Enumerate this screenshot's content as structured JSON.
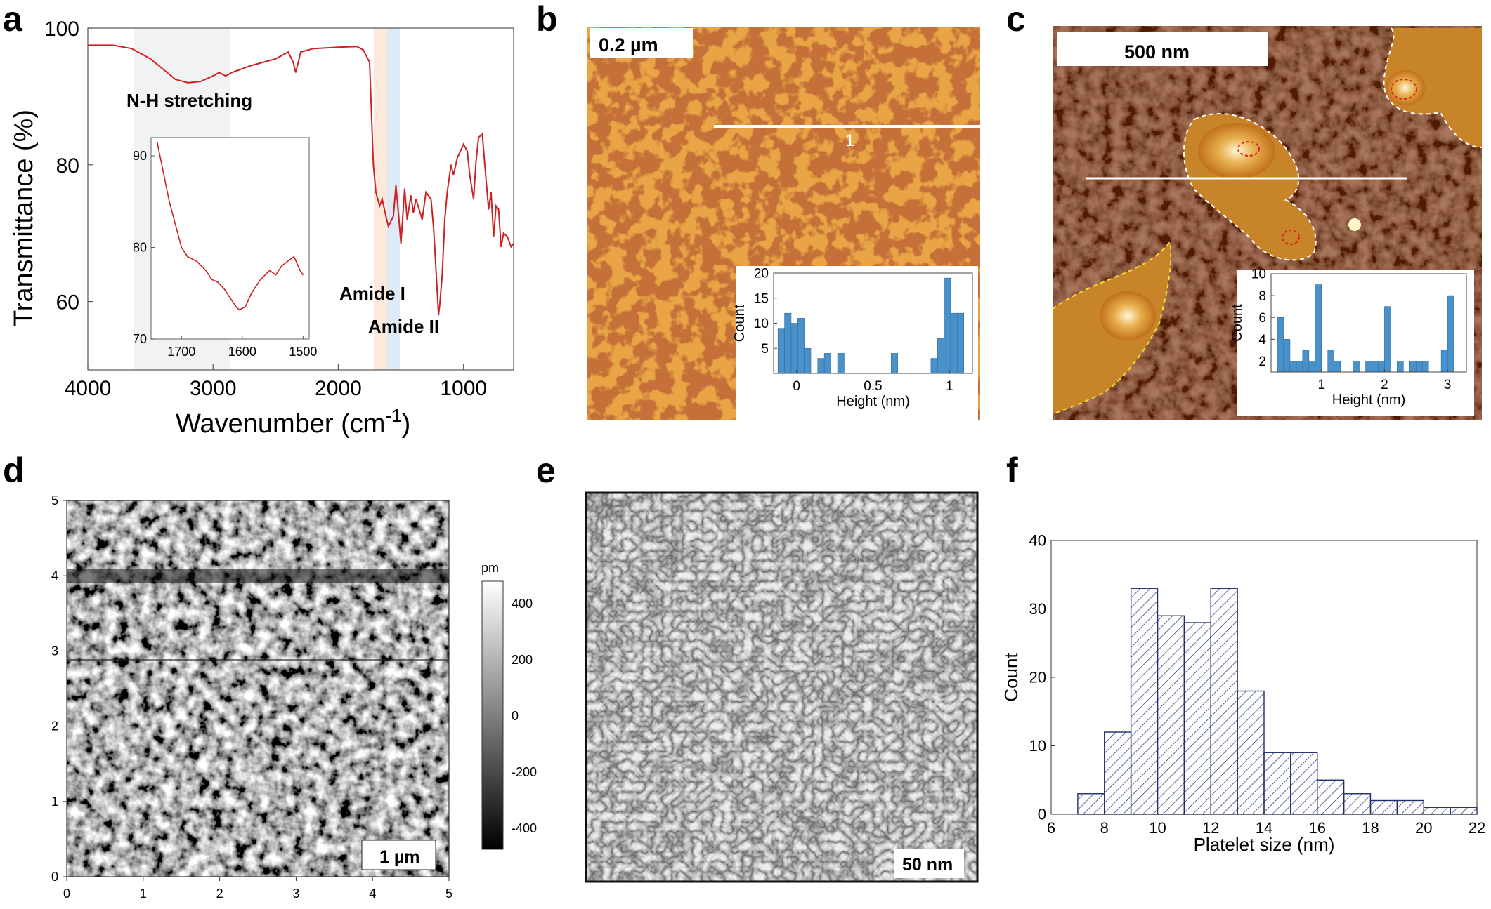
{
  "panels": {
    "a": {
      "letter": "a",
      "annotations": {
        "nh": "N-H stretching",
        "amide1": "Amide I",
        "amide2": "Amide II"
      }
    },
    "b": {
      "letter": "b",
      "scalebar": "0.2 µm",
      "profile_label": "1"
    },
    "c": {
      "letter": "c",
      "scalebar": "500 nm"
    },
    "d": {
      "letter": "d",
      "scalebar": "1 µm",
      "colorbar_unit": "pm",
      "colorbar_ticks": [
        "400",
        "200",
        "0",
        "-200",
        "-400"
      ]
    },
    "e": {
      "letter": "e",
      "scalebar": "50 nm"
    },
    "f": {
      "letter": "f"
    }
  },
  "colors": {
    "ftir_line": "#cc2222",
    "hist_blue": "#4a90c9",
    "hist_navy": "#1f2d6b",
    "afm_orange": "#e9a545",
    "afm_dark": "#8c2a0a"
  },
  "chart_data": [
    {
      "id": "a-main",
      "type": "line",
      "xlabel": "Wavenumber (cm-1)",
      "ylabel": "Transmittance (%)",
      "xlim": [
        4000,
        600
      ],
      "ylim": [
        50,
        100
      ],
      "xticks": [
        "4000",
        "3000",
        "2000",
        "1000"
      ],
      "yticks": [
        "60",
        "80",
        "100"
      ],
      "x": [
        4000,
        3800,
        3650,
        3500,
        3400,
        3300,
        3200,
        3100,
        3000,
        2950,
        2900,
        2850,
        2700,
        2500,
        2400,
        2360,
        2340,
        2300,
        2200,
        2000,
        1850,
        1800,
        1750,
        1720,
        1700,
        1670,
        1650,
        1620,
        1600,
        1560,
        1540,
        1520,
        1500,
        1470,
        1450,
        1420,
        1400,
        1380,
        1330,
        1300,
        1260,
        1240,
        1230,
        1200,
        1190,
        1170,
        1150,
        1130,
        1100,
        1080,
        1050,
        1000,
        970,
        950,
        920,
        900,
        880,
        850,
        830,
        800,
        780,
        760,
        740,
        720,
        700,
        680,
        650,
        620,
        600
      ],
      "y": [
        97.5,
        97.5,
        97.0,
        95.5,
        94.0,
        92.5,
        92.0,
        92.2,
        93.0,
        93.5,
        93.0,
        93.5,
        94.5,
        95.5,
        96.5,
        95.0,
        93.5,
        96.5,
        97.0,
        97.2,
        97.3,
        96.8,
        95.0,
        80.0,
        76.0,
        74.0,
        75.0,
        72.5,
        71.0,
        72.5,
        77.0,
        73.0,
        68.5,
        76.5,
        72.0,
        75.5,
        73.0,
        75.0,
        72.0,
        76.0,
        75.0,
        71.0,
        68.0,
        58.0,
        59.5,
        64.0,
        72.0,
        76.0,
        80.0,
        78.5,
        81.0,
        83.0,
        82.0,
        78.5,
        75.0,
        80.5,
        84.0,
        84.5,
        80.0,
        73.5,
        76.0,
        69.5,
        74.0,
        73.5,
        68.0,
        70.0,
        69.5,
        68.0,
        68.5
      ],
      "annotations": [
        "N-H stretching",
        "Amide I",
        "Amide II"
      ]
    },
    {
      "id": "a-inset",
      "type": "line",
      "xlim": [
        1750,
        1490
      ],
      "ylim": [
        70,
        92
      ],
      "xticks": [
        "1700",
        "1600",
        "1500"
      ],
      "yticks": [
        "70",
        "80",
        "90"
      ],
      "x": [
        1740,
        1720,
        1700,
        1690,
        1675,
        1660,
        1650,
        1640,
        1630,
        1620,
        1610,
        1605,
        1595,
        1585,
        1570,
        1555,
        1545,
        1535,
        1525,
        1515,
        1505,
        1500
      ],
      "y": [
        91.5,
        85.0,
        80.0,
        79.0,
        78.5,
        77.5,
        76.5,
        76.2,
        75.5,
        74.5,
        73.5,
        73.2,
        73.5,
        75.0,
        76.5,
        77.5,
        77.0,
        78.0,
        78.5,
        79.0,
        77.5,
        77.0
      ]
    },
    {
      "id": "b-inset",
      "type": "bar",
      "xlabel": "Height (nm)",
      "ylabel": "Count",
      "xlim": [
        -0.15,
        1.15
      ],
      "ylim": [
        0,
        20
      ],
      "xticks": [
        "0",
        "0.5",
        "1"
      ],
      "yticks": [
        "5",
        "10",
        "15",
        "20"
      ],
      "bin_width": 0.043,
      "x": [
        -0.1,
        -0.057,
        -0.014,
        0.029,
        0.072,
        0.16,
        0.203,
        0.29,
        0.64,
        0.9,
        0.943,
        0.986,
        1.029,
        1.072
      ],
      "values": [
        9,
        12,
        10,
        11,
        5,
        3,
        4,
        4,
        4,
        3,
        7,
        19,
        12,
        12
      ]
    },
    {
      "id": "c-inset",
      "type": "bar",
      "xlabel": "Height (nm)",
      "ylabel": "Count",
      "xlim": [
        0.2,
        3.3
      ],
      "ylim": [
        1,
        10
      ],
      "xticks": [
        "1",
        "2",
        "3"
      ],
      "yticks": [
        "2",
        "4",
        "6",
        "8",
        "10"
      ],
      "bin_width": 0.1,
      "x": [
        0.35,
        0.45,
        0.55,
        0.65,
        0.75,
        0.85,
        0.95,
        1.15,
        1.25,
        1.55,
        1.75,
        1.85,
        1.95,
        2.05,
        2.25,
        2.45,
        2.55,
        2.65,
        2.95,
        3.05
      ],
      "values": [
        6,
        4,
        2,
        2,
        3,
        2,
        9,
        3,
        2,
        2,
        2,
        2,
        2,
        7,
        2,
        2,
        2,
        2,
        3,
        8
      ]
    },
    {
      "id": "f",
      "type": "bar",
      "xlabel": "Platelet size (nm)",
      "ylabel": "Count",
      "xlim": [
        6,
        22
      ],
      "ylim": [
        0,
        40
      ],
      "xticks": [
        "6",
        "8",
        "10",
        "12",
        "14",
        "16",
        "18",
        "20",
        "22"
      ],
      "yticks": [
        "0",
        "10",
        "20",
        "30",
        "40"
      ],
      "bin_width": 1.0,
      "x": [
        7.5,
        8.5,
        9.5,
        10.5,
        11.5,
        12.5,
        13.5,
        14.5,
        15.5,
        16.5,
        17.5,
        18.5,
        19.5,
        20.5,
        21.5
      ],
      "values": [
        3,
        12,
        33,
        29,
        28,
        33,
        18,
        9,
        9,
        5,
        3,
        2,
        2,
        1,
        1
      ]
    },
    {
      "id": "d-axes",
      "type": "heatmap",
      "xlim": [
        0,
        5
      ],
      "ylim": [
        0,
        5
      ],
      "xticks": [
        "0",
        "1",
        "2",
        "3",
        "4",
        "5"
      ],
      "yticks": [
        "0",
        "1",
        "2",
        "3",
        "4",
        "5"
      ]
    }
  ]
}
